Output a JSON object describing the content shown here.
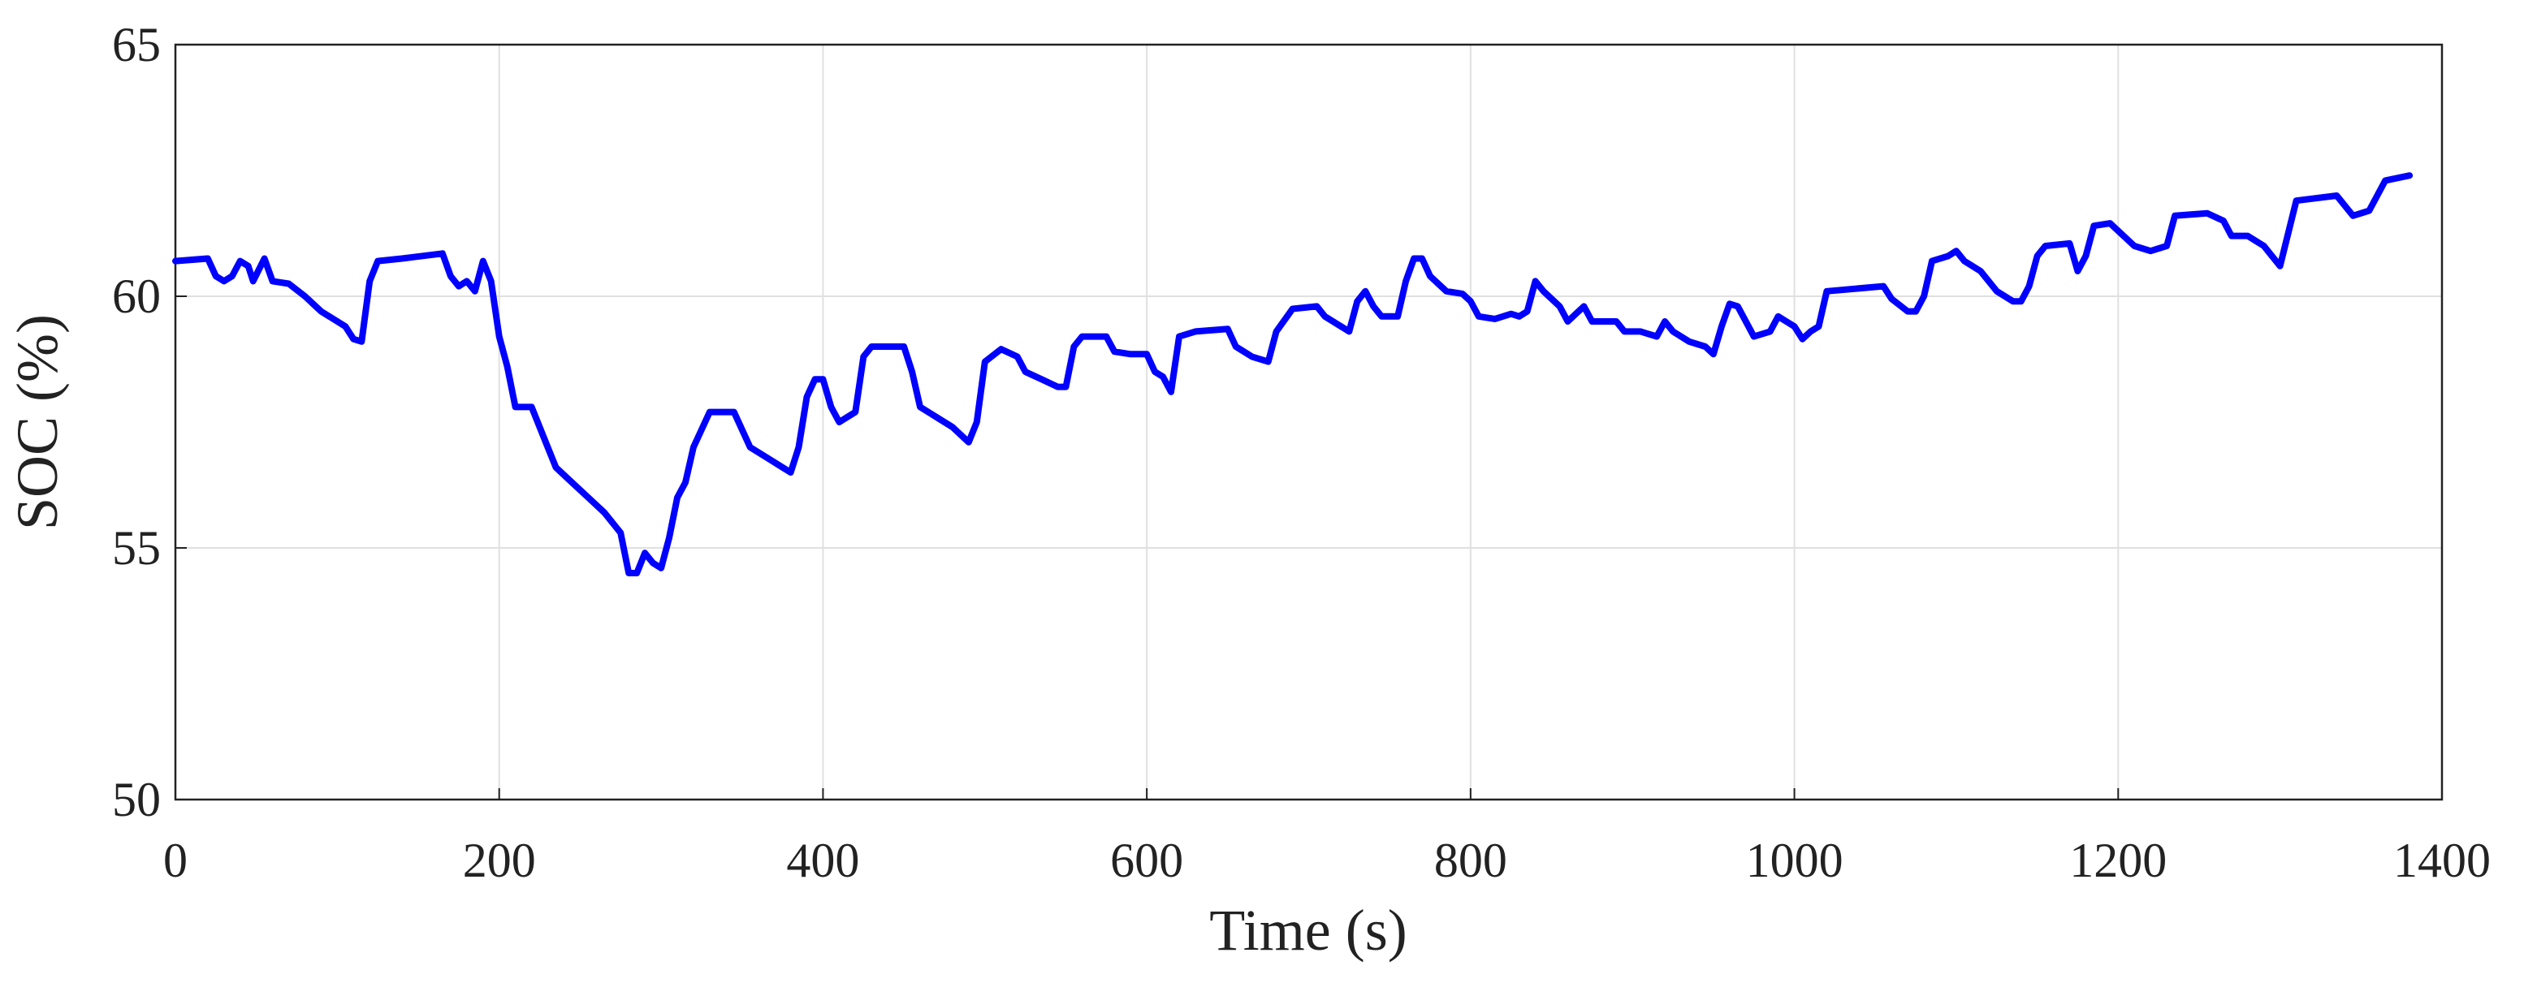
{
  "chart_data": {
    "type": "line",
    "xlabel": "Time (s)",
    "ylabel": "SOC (%)",
    "x": [
      0,
      20,
      25,
      30,
      35,
      40,
      45,
      48,
      55,
      60,
      70,
      80,
      90,
      100,
      105,
      110,
      115,
      120,
      125,
      140,
      165,
      170,
      175,
      180,
      185,
      190,
      195,
      200,
      205,
      210,
      220,
      230,
      235,
      245,
      255,
      265,
      275,
      280,
      285,
      290,
      295,
      300,
      305,
      310,
      315,
      320,
      330,
      345,
      355,
      365,
      375,
      380,
      385,
      390,
      395,
      400,
      405,
      410,
      420,
      425,
      430,
      450,
      455,
      460,
      470,
      480,
      490,
      495,
      500,
      510,
      520,
      525,
      535,
      545,
      550,
      555,
      560,
      575,
      580,
      590,
      600,
      605,
      610,
      615,
      620,
      630,
      650,
      655,
      665,
      675,
      680,
      690,
      705,
      710,
      720,
      725,
      730,
      735,
      740,
      745,
      755,
      760,
      765,
      770,
      775,
      785,
      795,
      800,
      805,
      815,
      825,
      830,
      835,
      840,
      845,
      855,
      860,
      870,
      875,
      890,
      895,
      905,
      915,
      920,
      925,
      935,
      945,
      950,
      955,
      960,
      965,
      970,
      975,
      985,
      990,
      995,
      1000,
      1005,
      1010,
      1015,
      1020,
      1055,
      1060,
      1070,
      1075,
      1080,
      1085,
      1095,
      1100,
      1105,
      1115,
      1125,
      1135,
      1140,
      1145,
      1150,
      1155,
      1170,
      1175,
      1180,
      1185,
      1195,
      1200,
      1210,
      1220,
      1230,
      1235,
      1255,
      1265,
      1270,
      1280,
      1290,
      1300,
      1310,
      1335,
      1345,
      1355,
      1365,
      1380
    ],
    "series": [
      {
        "color": "#0000ff",
        "values": [
          60.7,
          60.75,
          60.4,
          60.3,
          60.4,
          60.7,
          60.6,
          60.3,
          60.75,
          60.3,
          60.25,
          60.0,
          59.7,
          59.5,
          59.4,
          59.15,
          59.1,
          60.3,
          60.7,
          60.75,
          60.85,
          60.4,
          60.2,
          60.3,
          60.1,
          60.7,
          60.3,
          59.2,
          58.6,
          57.8,
          57.8,
          57.0,
          56.6,
          56.3,
          56.0,
          55.7,
          55.3,
          54.5,
          54.5,
          54.9,
          54.7,
          54.6,
          55.2,
          56.0,
          56.3,
          57.0,
          57.7,
          57.7,
          57.0,
          56.8,
          56.6,
          56.5,
          57.0,
          58.0,
          58.35,
          58.35,
          57.8,
          57.5,
          57.7,
          58.8,
          59.0,
          59.0,
          58.5,
          57.8,
          57.6,
          57.4,
          57.1,
          57.5,
          58.7,
          58.95,
          58.8,
          58.5,
          58.35,
          58.2,
          58.2,
          59.0,
          59.2,
          59.2,
          58.9,
          58.85,
          58.85,
          58.5,
          58.4,
          58.1,
          59.2,
          59.3,
          59.35,
          59.0,
          58.8,
          58.7,
          59.3,
          59.75,
          59.8,
          59.6,
          59.4,
          59.3,
          59.9,
          60.1,
          59.8,
          59.6,
          59.6,
          60.3,
          60.75,
          60.75,
          60.4,
          60.1,
          60.05,
          59.9,
          59.6,
          59.55,
          59.65,
          59.6,
          59.7,
          60.3,
          60.1,
          59.8,
          59.5,
          59.8,
          59.5,
          59.5,
          59.3,
          59.3,
          59.2,
          59.5,
          59.3,
          59.1,
          59.0,
          58.85,
          59.4,
          59.85,
          59.8,
          59.5,
          59.2,
          59.3,
          59.6,
          59.5,
          59.4,
          59.15,
          59.3,
          59.4,
          60.1,
          60.2,
          59.95,
          59.7,
          59.7,
          60.0,
          60.7,
          60.8,
          60.9,
          60.7,
          60.5,
          60.1,
          59.9,
          59.9,
          60.2,
          60.8,
          61.0,
          61.05,
          60.5,
          60.8,
          61.4,
          61.45,
          61.3,
          61.0,
          60.9,
          61.0,
          61.6,
          61.65,
          61.5,
          61.2,
          61.2,
          61.0,
          60.6,
          61.9,
          62.0,
          61.6,
          61.7,
          62.3,
          62.4
        ]
      }
    ],
    "xlim": [
      0,
      1400
    ],
    "xticks": [
      0,
      200,
      400,
      600,
      800,
      1000,
      1200,
      1400
    ],
    "ylim": [
      50,
      65
    ],
    "yticks": [
      50,
      55,
      60,
      65
    ],
    "grid": true
  }
}
